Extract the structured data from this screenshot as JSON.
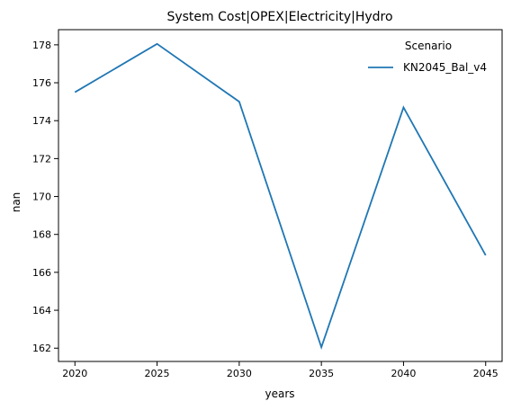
{
  "chart_data": {
    "type": "line",
    "title": "System Cost|OPEX|Electricity|Hydro",
    "xlabel": "years",
    "ylabel": "nan",
    "x": [
      2020,
      2025,
      2030,
      2035,
      2040,
      2045
    ],
    "xticks": [
      "2020",
      "2025",
      "2030",
      "2035",
      "2040",
      "2045"
    ],
    "yticks": [
      "162",
      "164",
      "166",
      "168",
      "170",
      "172",
      "174",
      "176",
      "178"
    ],
    "xlim": [
      2019,
      2046
    ],
    "ylim": [
      161.3,
      178.8
    ],
    "grid": false,
    "legend": {
      "title": "Scenario",
      "placement": "top-right"
    },
    "series": [
      {
        "name": "KN2045_Bal_v4",
        "color": "#1f77b4",
        "values": [
          175.5,
          178.05,
          175.0,
          162.05,
          174.7,
          166.9
        ]
      }
    ]
  }
}
